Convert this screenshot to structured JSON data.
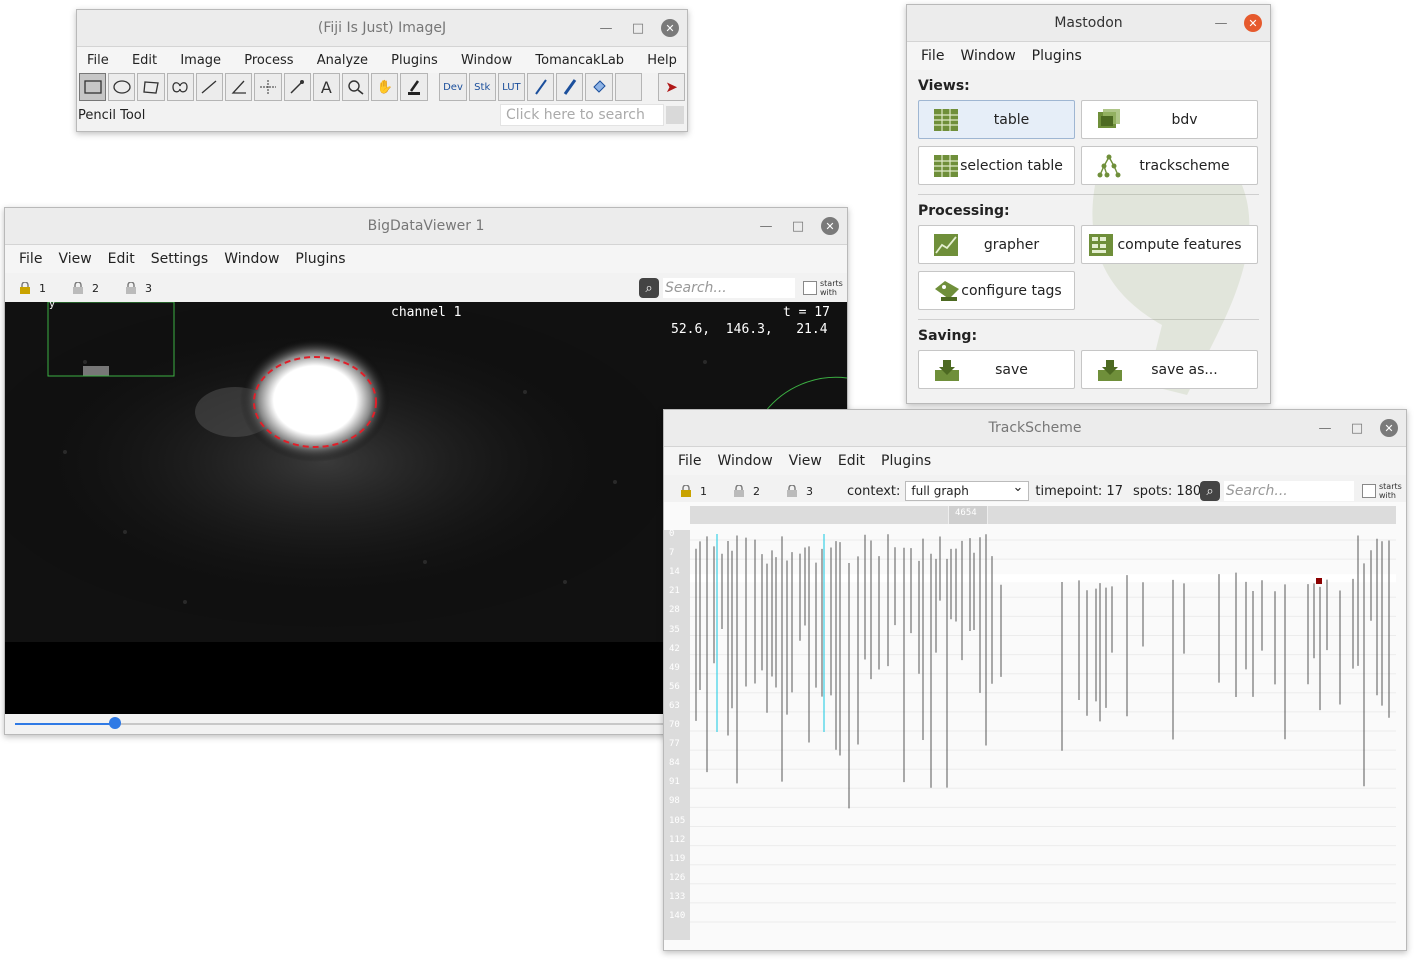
{
  "imagej": {
    "title": "(Fiji Is Just) ImageJ",
    "menu": [
      "File",
      "Edit",
      "Image",
      "Process",
      "Analyze",
      "Plugins",
      "Window",
      "TomancakLab",
      "Help"
    ],
    "tools": [
      "rectangle-icon",
      "oval-icon",
      "polygon-icon",
      "freehand-icon",
      "line-icon",
      "angle-icon",
      "point-icon",
      "wand-icon",
      "text-icon",
      "magnifier-icon",
      "hand-icon",
      "dropper-icon"
    ],
    "tool_labels": [
      "Dev",
      "Stk",
      "LUT"
    ],
    "status": "Pencil Tool",
    "search_placeholder": "Click here to search"
  },
  "mastodon": {
    "title": "Mastodon",
    "menu": [
      "File",
      "Window",
      "Plugins"
    ],
    "views_label": "Views:",
    "processing_label": "Processing:",
    "saving_label": "Saving:",
    "buttons": {
      "table": "table",
      "bdv": "bdv",
      "selection_table": "selection table",
      "trackscheme": "trackscheme",
      "grapher": "grapher",
      "compute_features": "compute features",
      "configure_tags": "configure tags",
      "save": "save",
      "save_as": "save as..."
    }
  },
  "bdv": {
    "title": "BigDataViewer 1",
    "menu": [
      "File",
      "View",
      "Edit",
      "Settings",
      "Window",
      "Plugins"
    ],
    "locks": [
      "1",
      "2",
      "3"
    ],
    "search_placeholder": "Search...",
    "starts_with": "starts with",
    "channel": "channel 1",
    "time": "t = 17",
    "coords": "52.6,  146.3,   21.4",
    "axis_label": "y",
    "slider_fraction": 0.12
  },
  "trackscheme": {
    "title": "TrackScheme",
    "menu": [
      "File",
      "Window",
      "View",
      "Edit",
      "Plugins"
    ],
    "locks": [
      "1",
      "2",
      "3"
    ],
    "context_label": "context:",
    "context_value": "full graph",
    "timepoint": "timepoint: 17",
    "spots": "spots: 180",
    "search_placeholder": "Search...",
    "starts_with": "starts with",
    "column_header": "4654",
    "row_labels": [
      "0",
      "7",
      "14",
      "21",
      "28",
      "35",
      "42",
      "49",
      "56",
      "63",
      "70",
      "77",
      "84",
      "91",
      "98",
      "105",
      "112",
      "119",
      "126",
      "133",
      "140"
    ]
  },
  "colors": {
    "close_red": "#e65a2d",
    "mastodon_icon_green": "#6f8f3a",
    "roi_red": "#e0202a",
    "selection_cyan": "#39d0e6"
  }
}
